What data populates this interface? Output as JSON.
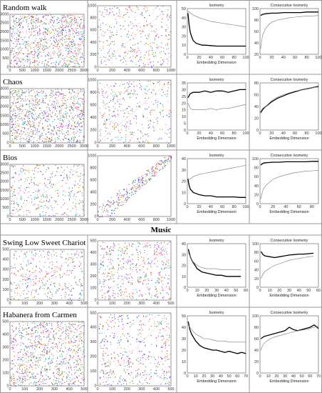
{
  "section_label": "Music",
  "rows": [
    {
      "label": "Random walk",
      "rp1": {
        "xticks": [
          "0",
          "500",
          "1000",
          "1500",
          "2000",
          "2500",
          "3000"
        ],
        "yticks": [
          "0",
          "500",
          "1000",
          "1500",
          "2000",
          "2500",
          "3000"
        ]
      },
      "rp2": {
        "xticks": [
          "0",
          "200",
          "400",
          "600",
          "800",
          "1000"
        ],
        "yticks": [
          "0",
          "200",
          "400",
          "600",
          "800",
          "1000"
        ]
      }
    },
    {
      "label": "Chaos",
      "rp1": {
        "xticks": [
          "0",
          "500",
          "1000",
          "1500",
          "2000",
          "2500",
          "3000"
        ],
        "yticks": [
          "0",
          "500",
          "1000",
          "1500",
          "2000",
          "2500",
          "3000"
        ]
      },
      "rp2": {
        "xticks": [
          "0",
          "200",
          "400",
          "600",
          "800",
          "1000"
        ],
        "yticks": [
          "0",
          "200",
          "400",
          "600",
          "800",
          "1000"
        ]
      }
    },
    {
      "label": "Bios",
      "rp1": {
        "xticks": [
          "0",
          "500",
          "1000",
          "1500",
          "2000",
          "2500",
          "3000"
        ],
        "yticks": [
          "0",
          "500",
          "1000",
          "1500",
          "2000",
          "2500",
          "3000"
        ]
      },
      "rp2": {
        "xticks": [
          "0",
          "200",
          "400",
          "600",
          "800",
          "1000"
        ],
        "yticks": [
          "0",
          "200",
          "400",
          "600",
          "800",
          "1000"
        ]
      }
    },
    {
      "label": "Swing Low Sweet Chariot",
      "rp1": {
        "xticks": [
          "0",
          "100",
          "200",
          "300",
          "400",
          "500"
        ],
        "yticks": [
          "0",
          "100",
          "200",
          "300",
          "400",
          "500"
        ]
      },
      "rp2": {
        "xticks": [
          "0",
          "100",
          "200",
          "300",
          "400",
          "500"
        ],
        "yticks": [
          "0",
          "100",
          "200",
          "300",
          "400",
          "500"
        ]
      }
    },
    {
      "label": "Habanera from Carmen",
      "rp1": {
        "xticks": [
          "0",
          "100",
          "200",
          "300",
          "400",
          "500"
        ],
        "yticks": [
          "0",
          "100",
          "200",
          "300",
          "400",
          "500"
        ]
      },
      "rp2": {
        "xticks": [
          "0",
          "100",
          "200",
          "300",
          "400",
          "500"
        ],
        "yticks": [
          "0",
          "100",
          "200",
          "300",
          "400",
          "500"
        ]
      }
    }
  ],
  "chart_data": [
    {
      "row": "Random walk",
      "type": "line",
      "title": "Isometry",
      "xlabel": "Embedding Dimension",
      "ylabel": "",
      "xlim": [
        0,
        100
      ],
      "ylim": [
        0,
        50
      ],
      "xticks": [
        0,
        20,
        40,
        60,
        80,
        100
      ],
      "yticks": [
        0,
        10,
        20,
        30,
        40,
        50
      ],
      "series": [
        {
          "x": [
            1,
            3,
            5,
            8,
            10,
            15,
            20,
            25,
            30,
            40,
            50,
            60,
            70,
            80,
            90,
            100
          ],
          "values": [
            45,
            32,
            24,
            18,
            15,
            12,
            11,
            10,
            10,
            9.5,
            9,
            9,
            9,
            9,
            9,
            9
          ]
        },
        {
          "x": [
            1,
            3,
            5,
            8,
            10,
            20,
            30,
            40,
            50,
            60,
            70,
            80,
            90,
            100
          ],
          "values": [
            46,
            47,
            45,
            44,
            43,
            40,
            38,
            36,
            35,
            34,
            33,
            32,
            31,
            30
          ]
        }
      ]
    },
    {
      "row": "Random walk",
      "type": "line",
      "title": "Consecutive Isometry",
      "xlabel": "",
      "ylabel": "",
      "xlim": [
        0,
        100
      ],
      "ylim": [
        20,
        100
      ],
      "xticks": [
        0,
        20,
        40,
        60,
        80,
        100
      ],
      "yticks": [
        20,
        40,
        60,
        80,
        100
      ],
      "series": [
        {
          "x": [
            1,
            5,
            10,
            20,
            30,
            40,
            50,
            60,
            70,
            80,
            90,
            100
          ],
          "values": [
            88,
            90,
            91,
            92,
            92,
            93,
            93,
            93,
            93,
            94,
            94,
            94
          ]
        },
        {
          "x": [
            1,
            3,
            5,
            8,
            10,
            15,
            20,
            30,
            40,
            50,
            60,
            70,
            80,
            90,
            100
          ],
          "values": [
            30,
            45,
            55,
            62,
            66,
            72,
            76,
            80,
            82,
            84,
            85,
            86,
            87,
            87,
            88
          ]
        }
      ]
    },
    {
      "row": "Chaos",
      "type": "line",
      "title": "Isometry",
      "xlabel": "Embedding Dimension",
      "ylabel": "",
      "xlim": [
        0,
        100
      ],
      "ylim": [
        0,
        35
      ],
      "xticks": [
        0,
        20,
        40,
        60,
        80,
        100
      ],
      "yticks": [
        0,
        5,
        10,
        15,
        20,
        25,
        30,
        35
      ],
      "series": [
        {
          "x": [
            1,
            5,
            10,
            20,
            30,
            40,
            50,
            60,
            70,
            80,
            90,
            100
          ],
          "values": [
            24,
            27,
            28,
            28,
            29,
            28,
            29,
            29,
            28,
            29,
            30,
            30
          ]
        },
        {
          "x": [
            1,
            5,
            10,
            20,
            30,
            40,
            50,
            60,
            70,
            80,
            90,
            100
          ],
          "values": [
            20,
            16,
            15,
            15,
            15,
            16,
            15,
            16,
            16,
            17,
            18,
            19
          ]
        }
      ]
    },
    {
      "row": "Chaos",
      "type": "line",
      "title": "Consecutive Isometry",
      "xlabel": "Embedding Dimension",
      "ylabel": "",
      "xlim": [
        0,
        100
      ],
      "ylim": [
        0,
        80
      ],
      "xticks": [
        0,
        20,
        40,
        60,
        80,
        100
      ],
      "yticks": [
        0,
        20,
        40,
        60,
        80
      ],
      "series": [
        {
          "x": [
            1,
            5,
            10,
            20,
            30,
            40,
            50,
            60,
            70,
            80,
            90,
            100
          ],
          "values": [
            30,
            36,
            40,
            48,
            54,
            58,
            62,
            65,
            68,
            70,
            72,
            74
          ]
        },
        {
          "x": [
            1,
            5,
            10,
            20,
            30,
            40,
            50,
            60,
            70,
            80,
            90,
            100
          ],
          "values": [
            28,
            34,
            40,
            50,
            56,
            60,
            63,
            66,
            68,
            70,
            72,
            73
          ]
        }
      ]
    },
    {
      "row": "Bios",
      "type": "line",
      "title": "Isometry",
      "xlabel": "Embedding Dimension",
      "ylabel": "",
      "xlim": [
        0,
        100
      ],
      "ylim": [
        0,
        40
      ],
      "xticks": [
        0,
        20,
        40,
        60,
        80,
        100
      ],
      "yticks": [
        0,
        10,
        20,
        30,
        40
      ],
      "series": [
        {
          "x": [
            1,
            3,
            5,
            10,
            15,
            20,
            30,
            40,
            50,
            60,
            70,
            80,
            90,
            100
          ],
          "values": [
            22,
            16,
            13,
            10,
            9,
            8,
            7,
            7,
            6,
            6,
            6,
            6,
            5.5,
            5.5
          ]
        },
        {
          "x": [
            1,
            5,
            10,
            20,
            30,
            40,
            50,
            60,
            70,
            80,
            90,
            100
          ],
          "values": [
            21,
            22,
            24,
            26,
            27,
            28,
            29,
            30,
            31,
            32,
            33,
            34
          ]
        }
      ]
    },
    {
      "row": "Bios",
      "type": "line",
      "title": "Consecutive Isometry",
      "xlabel": "Embedding Dimension",
      "ylabel": "",
      "xlim": [
        0,
        90
      ],
      "ylim": [
        0,
        100
      ],
      "xticks": [
        0,
        20,
        40,
        60,
        80
      ],
      "yticks": [
        0,
        20,
        40,
        60,
        80,
        100
      ],
      "series": [
        {
          "x": [
            1,
            5,
            10,
            20,
            30,
            40,
            50,
            60,
            70,
            80,
            90
          ],
          "values": [
            86,
            90,
            91,
            92,
            92,
            93,
            93,
            93,
            93,
            94,
            94
          ]
        },
        {
          "x": [
            1,
            3,
            5,
            10,
            15,
            20,
            30,
            40,
            50,
            60,
            70,
            80,
            90
          ],
          "values": [
            10,
            22,
            32,
            42,
            48,
            54,
            60,
            64,
            68,
            70,
            72,
            73,
            74
          ]
        }
      ]
    },
    {
      "row": "Swing Low Sweet Chariot",
      "type": "line",
      "title": "Isometry",
      "xlabel": "Embedding Dimension",
      "ylabel": "",
      "xlim": [
        0,
        60
      ],
      "ylim": [
        0,
        40
      ],
      "xticks": [
        0,
        10,
        20,
        30,
        40,
        50,
        60
      ],
      "yticks": [
        0,
        10,
        20,
        30,
        40
      ],
      "series": [
        {
          "x": [
            1,
            3,
            5,
            8,
            10,
            15,
            20,
            25,
            30,
            35,
            40,
            45,
            50,
            55
          ],
          "values": [
            35,
            28,
            24,
            20,
            17,
            14,
            13,
            12,
            11,
            11,
            10,
            10,
            10,
            10
          ]
        },
        {
          "x": [
            1,
            5,
            10,
            15,
            20,
            25,
            30,
            35,
            40,
            45,
            50,
            55
          ],
          "values": [
            32,
            24,
            20,
            18,
            17,
            17,
            17,
            16,
            16,
            16,
            16,
            16
          ]
        }
      ]
    },
    {
      "row": "Swing Low Sweet Chariot",
      "type": "line",
      "title": "Consecutive Isometry",
      "xlabel": "Embedding Dimension",
      "ylabel": "",
      "xlim": [
        0,
        60
      ],
      "ylim": [
        0,
        100
      ],
      "xticks": [
        0,
        10,
        20,
        30,
        40,
        50,
        60
      ],
      "yticks": [
        0,
        20,
        40,
        60,
        80,
        100
      ],
      "series": [
        {
          "x": [
            1,
            3,
            5,
            10,
            15,
            20,
            25,
            30,
            35,
            40,
            45,
            50,
            55
          ],
          "values": [
            82,
            75,
            72,
            70,
            68,
            70,
            72,
            74,
            75,
            76,
            76,
            77,
            78
          ]
        },
        {
          "x": [
            1,
            3,
            5,
            10,
            15,
            20,
            25,
            30,
            35,
            40,
            45,
            50,
            55
          ],
          "values": [
            20,
            30,
            36,
            44,
            50,
            54,
            58,
            62,
            64,
            66,
            68,
            70,
            71
          ]
        }
      ]
    },
    {
      "row": "Habanera from Carmen",
      "type": "line",
      "title": "Isometry",
      "xlabel": "Embedding Dimension",
      "ylabel": "",
      "xlim": [
        0,
        70
      ],
      "ylim": [
        0,
        50
      ],
      "xticks": [
        0,
        10,
        20,
        30,
        40,
        50,
        60,
        70
      ],
      "yticks": [
        0,
        10,
        20,
        30,
        40,
        50
      ],
      "series": [
        {
          "x": [
            1,
            3,
            5,
            10,
            15,
            20,
            25,
            30,
            35,
            40,
            45,
            50,
            55,
            60,
            65,
            70
          ],
          "values": [
            45,
            38,
            34,
            28,
            24,
            22,
            21,
            20,
            20,
            19,
            18,
            19,
            18,
            17,
            18,
            17
          ]
        },
        {
          "x": [
            1,
            3,
            5,
            10,
            15,
            20,
            25,
            30,
            35,
            40,
            45,
            50,
            55,
            60,
            65,
            70
          ],
          "values": [
            42,
            40,
            38,
            34,
            32,
            30,
            30,
            29,
            28,
            28,
            28,
            27,
            27,
            27,
            27,
            27
          ]
        }
      ]
    },
    {
      "row": "Habanera from Carmen",
      "type": "line",
      "title": "Consecutive Isometry",
      "xlabel": "Embedding Dimension",
      "ylabel": "",
      "xlim": [
        0,
        70
      ],
      "ylim": [
        0,
        100
      ],
      "xticks": [
        0,
        10,
        20,
        30,
        40,
        50,
        60,
        70
      ],
      "yticks": [
        0,
        20,
        40,
        60,
        80,
        100
      ],
      "series": [
        {
          "x": [
            1,
            3,
            5,
            10,
            15,
            20,
            25,
            30,
            35,
            40,
            45,
            50,
            55,
            60,
            65,
            70
          ],
          "values": [
            60,
            62,
            64,
            66,
            68,
            70,
            72,
            74,
            80,
            76,
            74,
            76,
            78,
            80,
            84,
            78
          ]
        },
        {
          "x": [
            1,
            3,
            5,
            10,
            15,
            20,
            25,
            30,
            35,
            40,
            45,
            50,
            55,
            60,
            65,
            70
          ],
          "values": [
            40,
            48,
            52,
            58,
            62,
            64,
            66,
            68,
            70,
            72,
            74,
            75,
            76,
            78,
            80,
            82
          ]
        }
      ]
    }
  ]
}
